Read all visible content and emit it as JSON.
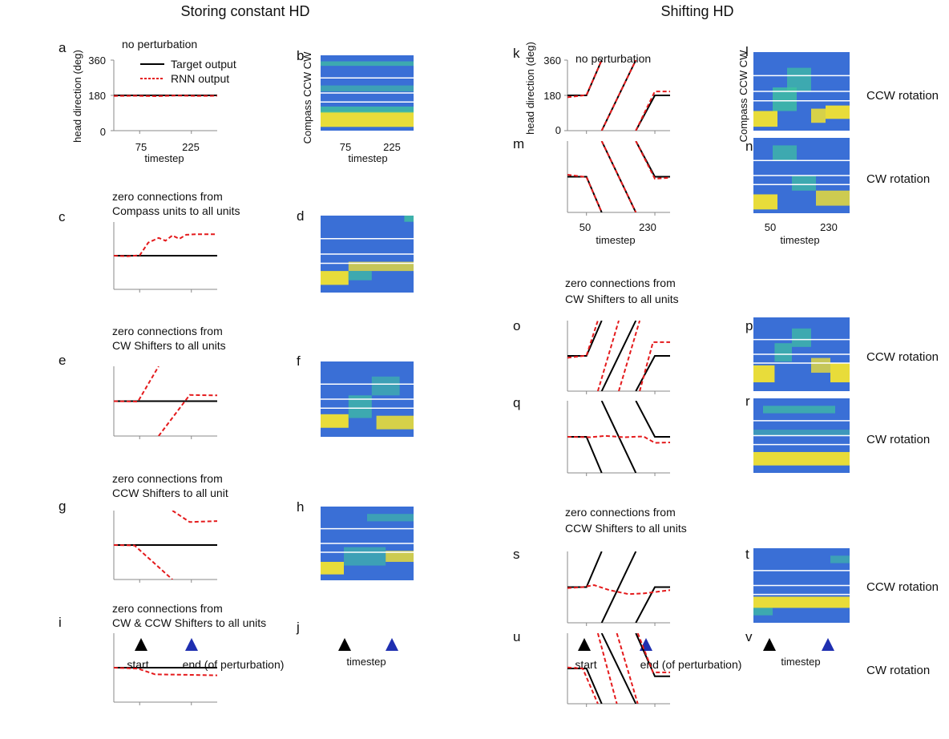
{
  "figure_titles": {
    "left": "Storing constant HD",
    "right": "Shifting HD"
  },
  "panel_letters": [
    "a",
    "b",
    "c",
    "d",
    "e",
    "f",
    "g",
    "h",
    "i",
    "j",
    "k",
    "l",
    "m",
    "n",
    "o",
    "p",
    "q",
    "r",
    "s",
    "t",
    "u",
    "v"
  ],
  "annotations": {
    "no_perturbation": "no perturbation",
    "c": [
      "zero connections from",
      "Compass units to all units"
    ],
    "e": [
      "zero connections from",
      "CW Shifters to all units"
    ],
    "g": [
      "zero connections from",
      "CCW Shifters to all unit"
    ],
    "i": [
      "zero connections from",
      "CW & CCW Shifters to all units"
    ],
    "o": [
      "zero connections from",
      "CW Shifters to all units"
    ],
    "s": [
      "zero connections from",
      "CCW Shifters to all units"
    ]
  },
  "legend": {
    "target": "Target output",
    "rnn": "RNN output"
  },
  "axes": {
    "ylabel": "head direction (deg)",
    "xlabel": "timestep",
    "compass_label": "Compass CCW CW",
    "yticks": [
      "0",
      "180",
      "360"
    ],
    "left_xticks": [
      "75",
      "225"
    ],
    "right_xticks": [
      "50",
      "230"
    ]
  },
  "rotation_labels": {
    "ccw": "CCW rotation",
    "cw": "CW rotation"
  },
  "markers": {
    "start": "start",
    "end": "end (of perturbation)",
    "timestep": "timestep"
  },
  "colors": {
    "target": "#000000",
    "rnn": "#e41a1c",
    "start_marker": "#000000",
    "end_marker": "#1f2fb0",
    "heat_base": "#3a6fd6",
    "heat_hot": "#e8dc3a",
    "heat_mid": "#3fc2a0"
  },
  "chart_data": [
    {
      "panel": "a",
      "type": "line",
      "ylim": [
        0,
        360
      ],
      "xlim": [
        0,
        300
      ],
      "series": [
        {
          "name": "Target output",
          "points": [
            [
              0,
              180
            ],
            [
              300,
              180
            ]
          ]
        },
        {
          "name": "RNN output",
          "points": [
            [
              0,
              177
            ],
            [
              60,
              178
            ],
            [
              120,
              176
            ],
            [
              180,
              179
            ],
            [
              240,
              177
            ],
            [
              300,
              178
            ]
          ]
        }
      ]
    },
    {
      "panel": "c",
      "type": "line",
      "ylim": [
        0,
        360
      ],
      "xlim": [
        0,
        300
      ],
      "series": [
        {
          "name": "Target output",
          "points": [
            [
              0,
              180
            ],
            [
              300,
              180
            ]
          ]
        },
        {
          "name": "RNN output",
          "points": [
            [
              0,
              180
            ],
            [
              40,
              177
            ],
            [
              75,
              182
            ],
            [
              100,
              250
            ],
            [
              130,
              275
            ],
            [
              150,
              260
            ],
            [
              170,
              288
            ],
            [
              190,
              270
            ],
            [
              210,
              292
            ],
            [
              240,
              295
            ],
            [
              300,
              295
            ]
          ]
        }
      ]
    },
    {
      "panel": "e",
      "type": "line",
      "ylim": [
        0,
        360
      ],
      "xlim": [
        0,
        300
      ],
      "series": [
        {
          "name": "Target output",
          "points": [
            [
              0,
              180
            ],
            [
              300,
              180
            ]
          ]
        },
        {
          "name": "RNN output",
          "points": [
            [
              0,
              180
            ],
            [
              70,
              178
            ],
            [
              130,
              360
            ]
          ]
        },
        {
          "name": "RNN output",
          "points": [
            [
              130,
              0
            ],
            [
              220,
              212
            ],
            [
              300,
              210
            ]
          ]
        }
      ]
    },
    {
      "panel": "g",
      "type": "line",
      "ylim": [
        0,
        360
      ],
      "xlim": [
        0,
        300
      ],
      "series": [
        {
          "name": "Target output",
          "points": [
            [
              0,
              180
            ],
            [
              300,
              180
            ]
          ]
        },
        {
          "name": "RNN output",
          "points": [
            [
              0,
              180
            ],
            [
              60,
              178
            ],
            [
              170,
              0
            ]
          ]
        },
        {
          "name": "RNN output",
          "points": [
            [
              170,
              360
            ],
            [
              220,
              300
            ],
            [
              300,
              305
            ]
          ]
        }
      ]
    },
    {
      "panel": "i",
      "type": "line",
      "ylim": [
        0,
        360
      ],
      "xlim": [
        0,
        300
      ],
      "series": [
        {
          "name": "Target output",
          "points": [
            [
              0,
              180
            ],
            [
              300,
              180
            ]
          ]
        },
        {
          "name": "RNN output",
          "points": [
            [
              0,
              180
            ],
            [
              70,
              175
            ],
            [
              120,
              145
            ],
            [
              200,
              143
            ],
            [
              300,
              140
            ]
          ]
        }
      ]
    },
    {
      "panel": "k",
      "type": "line",
      "ylim": [
        0,
        360
      ],
      "xlim": [
        0,
        270
      ],
      "series": [
        {
          "name": "Target output",
          "points": [
            [
              0,
              180
            ],
            [
              50,
              180
            ],
            [
              90,
              360
            ]
          ]
        },
        {
          "name": "Target output",
          "points": [
            [
              90,
              0
            ],
            [
              180,
              360
            ]
          ]
        },
        {
          "name": "Target output",
          "points": [
            [
              180,
              0
            ],
            [
              230,
              180
            ],
            [
              270,
              180
            ]
          ]
        },
        {
          "name": "RNN output",
          "points": [
            [
              0,
              170
            ],
            [
              50,
              182
            ],
            [
              90,
              360
            ]
          ]
        },
        {
          "name": "RNN output",
          "points": [
            [
              90,
              0
            ],
            [
              180,
              360
            ]
          ]
        },
        {
          "name": "RNN output",
          "points": [
            [
              180,
              0
            ],
            [
              230,
              200
            ],
            [
              270,
              200
            ]
          ]
        }
      ]
    },
    {
      "panel": "m",
      "type": "line",
      "ylim": [
        0,
        360
      ],
      "xlim": [
        0,
        270
      ],
      "series": [
        {
          "name": "Target output",
          "points": [
            [
              0,
              180
            ],
            [
              50,
              180
            ],
            [
              90,
              0
            ]
          ]
        },
        {
          "name": "Target output",
          "points": [
            [
              90,
              360
            ],
            [
              180,
              0
            ]
          ]
        },
        {
          "name": "Target output",
          "points": [
            [
              180,
              360
            ],
            [
              230,
              180
            ],
            [
              270,
              180
            ]
          ]
        },
        {
          "name": "RNN output",
          "points": [
            [
              0,
              190
            ],
            [
              50,
              178
            ],
            [
              90,
              0
            ]
          ]
        },
        {
          "name": "RNN output",
          "points": [
            [
              90,
              360
            ],
            [
              180,
              0
            ]
          ]
        },
        {
          "name": "RNN output",
          "points": [
            [
              180,
              360
            ],
            [
              230,
              170
            ],
            [
              270,
              175
            ]
          ]
        }
      ]
    },
    {
      "panel": "o",
      "type": "line",
      "ylim": [
        0,
        360
      ],
      "xlim": [
        0,
        270
      ],
      "series": [
        {
          "name": "Target output",
          "points": [
            [
              0,
              180
            ],
            [
              50,
              180
            ],
            [
              90,
              360
            ]
          ]
        },
        {
          "name": "Target output",
          "points": [
            [
              90,
              0
            ],
            [
              180,
              360
            ]
          ]
        },
        {
          "name": "Target output",
          "points": [
            [
              180,
              0
            ],
            [
              230,
              180
            ],
            [
              270,
              180
            ]
          ]
        },
        {
          "name": "RNN output",
          "points": [
            [
              0,
              170
            ],
            [
              50,
              182
            ],
            [
              80,
              360
            ]
          ]
        },
        {
          "name": "RNN output",
          "points": [
            [
              80,
              0
            ],
            [
              135,
              360
            ]
          ]
        },
        {
          "name": "RNN output",
          "points": [
            [
              135,
              0
            ],
            [
              190,
              360
            ]
          ]
        },
        {
          "name": "RNN output",
          "points": [
            [
              190,
              0
            ],
            [
              225,
              250
            ],
            [
              270,
              250
            ]
          ]
        }
      ]
    },
    {
      "panel": "q",
      "type": "line",
      "ylim": [
        0,
        360
      ],
      "xlim": [
        0,
        270
      ],
      "series": [
        {
          "name": "Target output",
          "points": [
            [
              0,
              180
            ],
            [
              50,
              180
            ],
            [
              90,
              0
            ]
          ]
        },
        {
          "name": "Target output",
          "points": [
            [
              90,
              360
            ],
            [
              180,
              0
            ]
          ]
        },
        {
          "name": "Target output",
          "points": [
            [
              180,
              360
            ],
            [
              230,
              180
            ],
            [
              270,
              180
            ]
          ]
        },
        {
          "name": "RNN output",
          "points": [
            [
              0,
              180
            ],
            [
              60,
              178
            ],
            [
              100,
              185
            ],
            [
              150,
              178
            ],
            [
              200,
              182
            ],
            [
              230,
              150
            ],
            [
              270,
              152
            ]
          ]
        }
      ]
    },
    {
      "panel": "s",
      "type": "line",
      "ylim": [
        0,
        360
      ],
      "xlim": [
        0,
        270
      ],
      "series": [
        {
          "name": "Target output",
          "points": [
            [
              0,
              180
            ],
            [
              50,
              180
            ],
            [
              90,
              360
            ]
          ]
        },
        {
          "name": "Target output",
          "points": [
            [
              90,
              0
            ],
            [
              180,
              360
            ]
          ]
        },
        {
          "name": "Target output",
          "points": [
            [
              180,
              0
            ],
            [
              230,
              180
            ],
            [
              270,
              180
            ]
          ]
        },
        {
          "name": "RNN output",
          "points": [
            [
              0,
              175
            ],
            [
              40,
              180
            ],
            [
              70,
              190
            ],
            [
              110,
              165
            ],
            [
              160,
              145
            ],
            [
              200,
              148
            ],
            [
              230,
              155
            ],
            [
              270,
              165
            ]
          ]
        }
      ]
    },
    {
      "panel": "u",
      "type": "line",
      "ylim": [
        0,
        360
      ],
      "xlim": [
        0,
        270
      ],
      "series": [
        {
          "name": "Target output",
          "points": [
            [
              0,
              180
            ],
            [
              50,
              180
            ],
            [
              90,
              0
            ]
          ]
        },
        {
          "name": "Target output",
          "points": [
            [
              90,
              360
            ],
            [
              180,
              0
            ]
          ]
        },
        {
          "name": "Target output",
          "points": [
            [
              180,
              360
            ],
            [
              230,
              140
            ],
            [
              270,
              140
            ]
          ]
        },
        {
          "name": "RNN output",
          "points": [
            [
              0,
              185
            ],
            [
              40,
              180
            ],
            [
              80,
              0
            ]
          ]
        },
        {
          "name": "RNN output",
          "points": [
            [
              80,
              360
            ],
            [
              130,
              0
            ]
          ]
        },
        {
          "name": "RNN output",
          "points": [
            [
              130,
              360
            ],
            [
              185,
              0
            ]
          ]
        },
        {
          "name": "RNN output",
          "points": [
            [
              185,
              360
            ],
            [
              225,
              160
            ],
            [
              270,
              160
            ]
          ]
        }
      ]
    }
  ]
}
